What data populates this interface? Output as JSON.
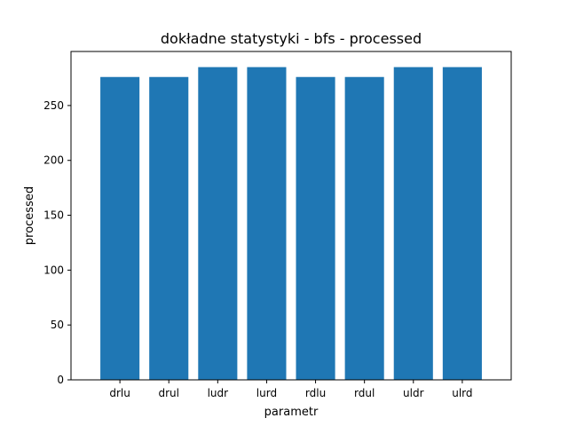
{
  "chart_data": {
    "type": "bar",
    "title": "dokładne statystyki - bfs - processed",
    "xlabel": "parametr",
    "ylabel": "processed",
    "categories": [
      "drlu",
      "drul",
      "ludr",
      "lurd",
      "rdlu",
      "rdul",
      "uldr",
      "ulrd"
    ],
    "values": [
      276,
      276,
      285,
      285,
      276,
      276,
      285,
      285
    ],
    "ylim": [
      0,
      299.25
    ],
    "yticks": [
      0,
      50,
      100,
      150,
      200,
      250
    ],
    "grid": false,
    "legend": "none",
    "bar_color": "#1f77b4"
  }
}
